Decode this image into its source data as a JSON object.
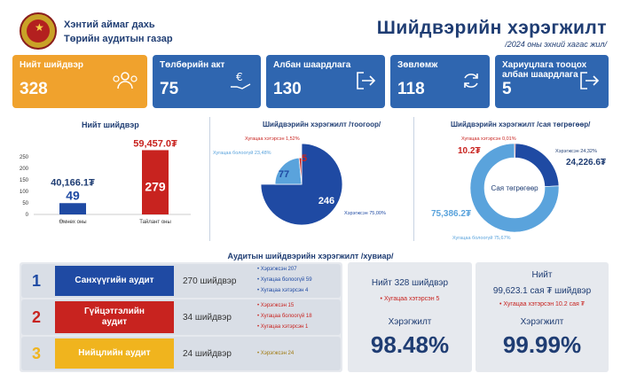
{
  "header": {
    "org_line1": "Хэнтий аймаг дахь",
    "org_line2": "Төрийн аудитын газар",
    "title": "Шийдвэрийн хэрэгжилт",
    "subtitle": "/2024 оны эхний хагас жил/"
  },
  "cards": [
    {
      "label": "Нийт шийдвэр",
      "value": "328",
      "icon": "people-icon",
      "color": "#f0a22d"
    },
    {
      "label": "Төлбөрийн акт",
      "value": "75",
      "icon": "euro-hand-icon",
      "color": "#2f66b0"
    },
    {
      "label": "Албан шаардлага",
      "value": "130",
      "icon": "exit-arrow-icon",
      "color": "#2f66b0"
    },
    {
      "label": "Зөвлөмж",
      "value": "118",
      "icon": "refresh-icon",
      "color": "#2f66b0"
    },
    {
      "label": "Хариуцлага тооцох албан шаардлага",
      "value": "5",
      "icon": "exit-arrow-icon",
      "color": "#2f66b0"
    }
  ],
  "chart_data": [
    {
      "type": "bar",
      "title": "Нийт шийдвэр",
      "categories": [
        "Өмнөх оны",
        "Тайлант оны"
      ],
      "values": [
        49,
        279
      ],
      "amounts": [
        "40,166.1₮",
        "59,457.0₮"
      ],
      "colors": [
        "#1f4aa3",
        "#c8231f"
      ],
      "ylim": [
        0,
        300
      ],
      "yticks": [
        "0",
        "50",
        "100",
        "150",
        "200",
        "250"
      ]
    },
    {
      "type": "pie",
      "title": "Шийдвэрийн хэрэгжилт /тоогоор/",
      "slices": [
        {
          "label": "Хэрэгжсэн 75,00%",
          "value": 246,
          "color": "#1f4aa3"
        },
        {
          "label": "Хугацаа болоогүй 23,48%",
          "value": 77,
          "color": "#5aa3dc"
        },
        {
          "label": "Хугацаа хэтэрсэн 1,52%",
          "value": 5,
          "color": "#c8231f"
        }
      ],
      "value_labels": [
        "246",
        "77",
        "5"
      ]
    },
    {
      "type": "pie",
      "title": "Шийдвэрийн хэрэгжилт /сая төгрөгөөр/",
      "center_label": "Сая төгрөгөөр",
      "slices": [
        {
          "label": "Хэрэгжсэн 24,32%",
          "value": 24226.6,
          "color": "#1f4aa3"
        },
        {
          "label": "Хугацаа болоогүй 75,67%",
          "value": 75386.2,
          "color": "#5aa3dc"
        },
        {
          "label": "Хугацаа хэтэрсэн 0,01%",
          "value": 10.2,
          "color": "#c8231f"
        }
      ],
      "value_labels": [
        "24,226.6₮",
        "75,386.2₮",
        "10.2₮"
      ]
    }
  ],
  "bottom": {
    "title": "Аудитын шийдвэрийн хэрэгжилт /хувиар/",
    "rows": [
      {
        "num": "1",
        "name": "Санхүүгийн аудит",
        "count": "270 шийдвэр",
        "color": "#1f4aa3",
        "num_color": "#1f4aa3",
        "details": [
          "Хэрэгжсэн  207",
          "Хугацаа болоогүй  59",
          "Хугацаа хэтэрсэн  4"
        ],
        "det_color": "#1f4aa3"
      },
      {
        "num": "2",
        "name": "Гүйцэтгэлийн аудит",
        "count": "34 шийдвэр",
        "color": "#c8231f",
        "num_color": "#c8231f",
        "details": [
          "Хэрэгжсэн  15",
          "Хугацаа болоогүй  18",
          "Хугацаа хэтэрсэн  1"
        ],
        "det_color": "#c8231f"
      },
      {
        "num": "3",
        "name": "Нийцлийн аудит",
        "count": "24 шийдвэр",
        "color": "#f0b41e",
        "num_color": "#f0b41e",
        "details": [
          "Хэрэгжсэн  24"
        ],
        "det_color": "#a07a10"
      }
    ],
    "summary1": {
      "line": "Нийт 328 шийдвэр",
      "red": "Хугацаа хэтэрсэн  5",
      "label": "Хэрэгжилт",
      "value": "98.48%"
    },
    "summary2": {
      "line1": "Нийт",
      "line2": "99,623.1 сая ₮ шийдвэр",
      "red": "Хугацаа хэтэрсэн  10.2 сая ₮",
      "label": "Хэрэгжилт",
      "value": "99.99%"
    }
  }
}
